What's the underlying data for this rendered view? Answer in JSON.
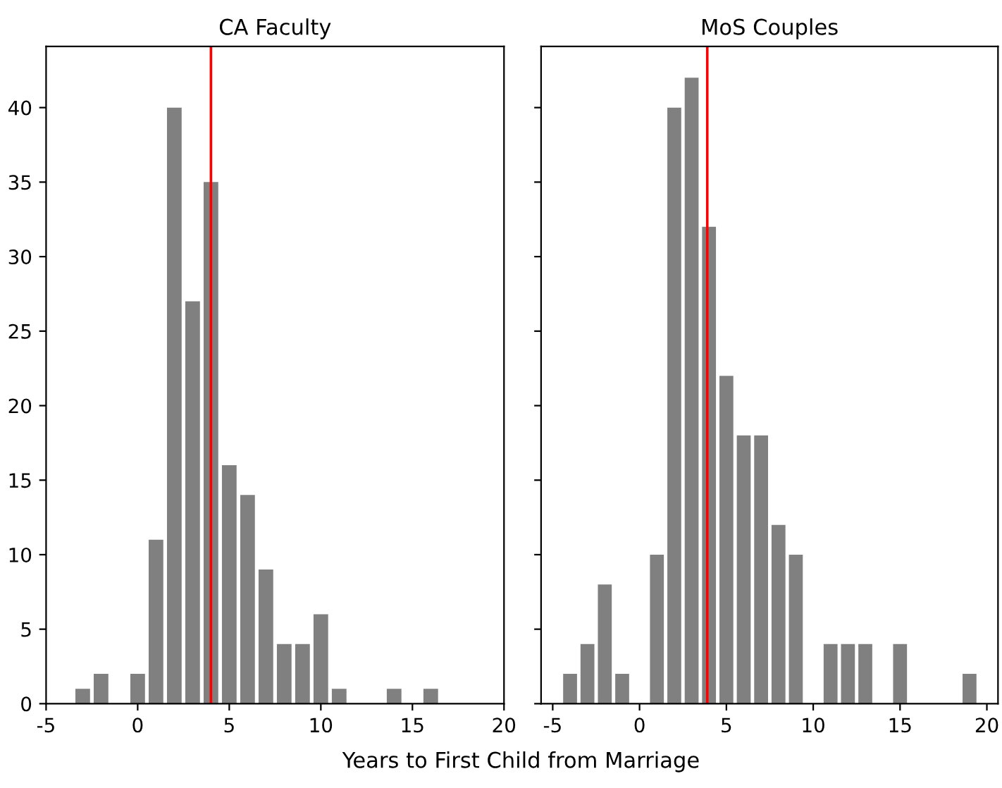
{
  "chart_data": [
    {
      "type": "bar",
      "title": "CA Faculty",
      "xlabel": "Years to First Child from Marriage",
      "x": [
        -3,
        -2,
        0,
        1,
        2,
        3,
        4,
        5,
        6,
        7,
        8,
        9,
        10,
        11,
        14,
        16
      ],
      "values": [
        1,
        2,
        2,
        11,
        40,
        27,
        35,
        16,
        14,
        9,
        4,
        4,
        6,
        1,
        1,
        1
      ],
      "color": "#808080",
      "xlim": [
        -5,
        20
      ],
      "xticks": [
        -5,
        0,
        5,
        10,
        15,
        20
      ],
      "ylim": [
        0,
        44.1
      ],
      "yticks": [
        0,
        5,
        10,
        15,
        20,
        25,
        30,
        35,
        40
      ],
      "ref_lines": [
        {
          "axis": "x",
          "value": 4,
          "color": "#ff0000"
        }
      ]
    },
    {
      "type": "bar",
      "title": "MoS Couples",
      "x": [
        -4,
        -3,
        -2,
        -1,
        1,
        2,
        3,
        4,
        5,
        6,
        7,
        8,
        9,
        11,
        12,
        13,
        15,
        19
      ],
      "values": [
        2,
        4,
        8,
        2,
        10,
        40,
        42,
        32,
        22,
        18,
        18,
        12,
        10,
        4,
        4,
        4,
        4,
        2
      ],
      "color": "#808080",
      "xlim": [
        -5.67,
        20.64
      ],
      "xticks": [
        -5,
        0,
        5,
        10,
        15,
        20
      ],
      "ylim": [
        0,
        44.1
      ],
      "yticks": [
        0,
        5,
        10,
        15,
        20,
        25,
        30,
        35,
        40
      ],
      "tick_labels": "x",
      "ref_lines": [
        {
          "axis": "x",
          "value": 3.9,
          "color": "#ff0000"
        }
      ]
    }
  ]
}
